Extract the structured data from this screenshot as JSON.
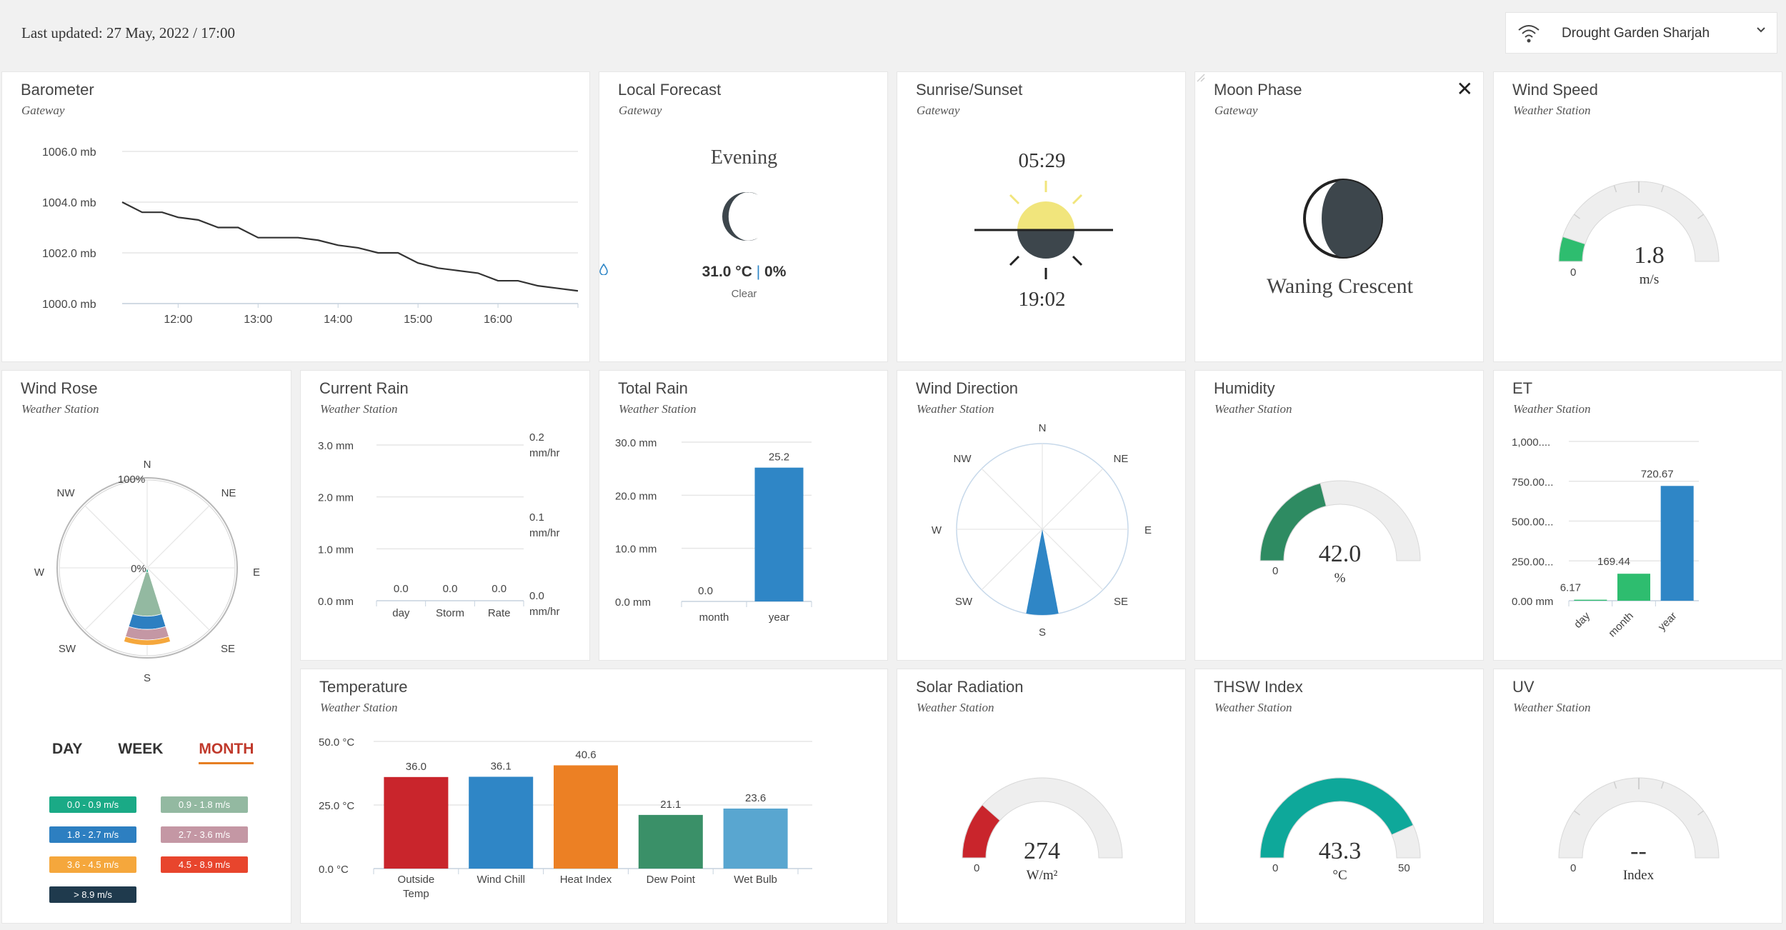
{
  "header": {
    "last_updated": "Last updated: 27 May, 2022 / 17:00",
    "station_name": "Drought Garden Sharjah"
  },
  "barometer": {
    "title": "Barometer",
    "subtitle": "Gateway",
    "chart_data": {
      "type": "line",
      "y_ticks": [
        "1006.0 mb",
        "1004.0 mb",
        "1002.0 mb",
        "1000.0 mb"
      ],
      "x_ticks": [
        "12:00",
        "13:00",
        "14:00",
        "15:00",
        "16:00"
      ],
      "ylim": [
        1000,
        1006
      ],
      "xlim": [
        11.3,
        17.0
      ],
      "points": [
        [
          11.3,
          1004.0
        ],
        [
          11.55,
          1003.6
        ],
        [
          11.8,
          1003.6
        ],
        [
          12.0,
          1003.4
        ],
        [
          12.25,
          1003.3
        ],
        [
          12.5,
          1003.0
        ],
        [
          12.75,
          1003.0
        ],
        [
          13.0,
          1002.6
        ],
        [
          13.25,
          1002.6
        ],
        [
          13.5,
          1002.6
        ],
        [
          13.75,
          1002.5
        ],
        [
          14.0,
          1002.3
        ],
        [
          14.25,
          1002.2
        ],
        [
          14.5,
          1002.0
        ],
        [
          14.75,
          1002.0
        ],
        [
          15.0,
          1001.6
        ],
        [
          15.25,
          1001.4
        ],
        [
          15.5,
          1001.3
        ],
        [
          15.75,
          1001.2
        ],
        [
          16.0,
          1000.9
        ],
        [
          16.25,
          1000.9
        ],
        [
          16.5,
          1000.7
        ],
        [
          16.75,
          1000.6
        ],
        [
          17.0,
          1000.5
        ]
      ]
    }
  },
  "local_forecast": {
    "title": "Local Forecast",
    "subtitle": "Gateway",
    "period": "Evening",
    "temp": "31.0 °C",
    "separator": "|",
    "precip": "0%",
    "condition": "Clear"
  },
  "sunrise_sunset": {
    "title": "Sunrise/Sunset",
    "subtitle": "Gateway",
    "sunrise": "05:29",
    "sunset": "19:02"
  },
  "moon_phase": {
    "title": "Moon Phase",
    "subtitle": "Gateway",
    "phase": "Waning Crescent",
    "close": "✕"
  },
  "wind_speed": {
    "title": "Wind Speed",
    "subtitle": "Weather Station",
    "value": "1.8",
    "unit": "m/s",
    "min_label": "0",
    "fraction": 0.1,
    "color": "#2ebd6f"
  },
  "wind_rose": {
    "title": "Wind Rose",
    "subtitle": "Weather Station",
    "directions": [
      "N",
      "NE",
      "E",
      "SE",
      "S",
      "SW",
      "W",
      "NW"
    ],
    "outer_label": "100%",
    "center_label": "0%",
    "tabs": [
      "DAY",
      "WEEK",
      "MONTH"
    ],
    "active_tab": "MONTH",
    "legend": [
      {
        "label": "0.0 - 0.9 m/s",
        "color": "#1aaa86"
      },
      {
        "label": "0.9 - 1.8 m/s",
        "color": "#93b9a1"
      },
      {
        "label": "1.8 - 2.7 m/s",
        "color": "#2d7fc1"
      },
      {
        "label": "2.7 - 3.6 m/s",
        "color": "#c497a4"
      },
      {
        "label": "3.6 - 4.5 m/s",
        "color": "#f5a73c"
      },
      {
        "label": "4.5 - 8.9 m/s",
        "color": "#e8452d"
      },
      {
        "label": "> 8.9 m/s",
        "color": "#1f3a4d"
      }
    ],
    "south_petal_percent": [
      {
        "band": "0.0 - 0.9 m/s",
        "cumulative": 5
      },
      {
        "band": "0.9 - 1.8 m/s",
        "cumulative": 55
      },
      {
        "band": "1.8 - 2.7 m/s",
        "cumulative": 70
      },
      {
        "band": "2.7 - 3.6 m/s",
        "cumulative": 82
      },
      {
        "band": "3.6 - 4.5 m/s",
        "cumulative": 88
      }
    ]
  },
  "current_rain": {
    "title": "Current Rain",
    "subtitle": "Weather Station",
    "chart_data": {
      "type": "bar",
      "categories": [
        "day",
        "Storm",
        "Rate"
      ],
      "values": [
        0.0,
        0.0,
        0.0
      ],
      "value_labels": [
        "0.0",
        "0.0",
        "0.0"
      ],
      "y_ticks_left": [
        "3.0 mm",
        "2.0 mm",
        "1.0 mm",
        "0.0 mm"
      ],
      "y_ticks_right": [
        [
          "0.2",
          "mm/hr"
        ],
        [
          "0.1",
          "mm/hr"
        ],
        [
          "0.0",
          "mm/hr"
        ]
      ]
    }
  },
  "total_rain": {
    "title": "Total Rain",
    "subtitle": "Weather Station",
    "chart_data": {
      "type": "bar",
      "categories": [
        "month",
        "year"
      ],
      "values": [
        0.0,
        25.2
      ],
      "value_labels": [
        "0.0",
        "25.2"
      ],
      "y_ticks": [
        "30.0 mm",
        "20.0 mm",
        "10.0 mm",
        "0.0 mm"
      ],
      "ylim": [
        0,
        30
      ],
      "color": "#2f86c6"
    }
  },
  "wind_direction": {
    "title": "Wind Direction",
    "subtitle": "Weather Station",
    "directions": [
      "N",
      "NE",
      "E",
      "SE",
      "S",
      "SW",
      "W",
      "NW"
    ],
    "heading_deg": 180,
    "color": "#2f86c6"
  },
  "humidity": {
    "title": "Humidity",
    "subtitle": "Weather Station",
    "value": "42.0",
    "unit": "%",
    "min_label": "0",
    "fraction": 0.42,
    "color": "#2e8b62"
  },
  "et": {
    "title": "ET",
    "subtitle": "Weather Station",
    "chart_data": {
      "type": "bar",
      "categories": [
        "day",
        "month",
        "year"
      ],
      "values": [
        6.17,
        169.44,
        720.67
      ],
      "value_labels": [
        "6.17",
        "169.44",
        "720.67"
      ],
      "colors": [
        "#2ebd6f",
        "#2ebd6f",
        "#2f86c6"
      ],
      "y_ticks": [
        "1,000....",
        "750.00...",
        "500.00...",
        "250.00...",
        "0.00 mm"
      ],
      "ylim": [
        0,
        1000
      ]
    }
  },
  "temperature": {
    "title": "Temperature",
    "subtitle": "Weather Station",
    "chart_data": {
      "type": "bar",
      "categories": [
        [
          "Outside",
          "Temp"
        ],
        [
          "Wind Chill"
        ],
        [
          "Heat Index"
        ],
        [
          "Dew Point"
        ],
        [
          "Wet Bulb"
        ]
      ],
      "values": [
        36.0,
        36.1,
        40.6,
        21.1,
        23.6
      ],
      "value_labels": [
        "36.0",
        "36.1",
        "40.6",
        "21.1",
        "23.6"
      ],
      "colors": [
        "#c9252c",
        "#2f86c6",
        "#ec8024",
        "#3a9068",
        "#59a6d0"
      ],
      "y_ticks": [
        "50.0 °C",
        "25.0 °C",
        "0.0 °C"
      ],
      "ylim": [
        0,
        50
      ]
    }
  },
  "solar_radiation": {
    "title": "Solar Radiation",
    "subtitle": "Weather Station",
    "value": "274",
    "unit": "W/m²",
    "min_label": "0",
    "fraction": 0.23,
    "color": "#c9252c"
  },
  "thsw": {
    "title": "THSW Index",
    "subtitle": "Weather Station",
    "value": "43.3",
    "unit": "°C",
    "min_label": "0",
    "max_label": "50",
    "fraction": 0.866,
    "color": "#0ea89a"
  },
  "uv": {
    "title": "UV",
    "subtitle": "Weather Station",
    "value": "--",
    "unit": "Index",
    "min_label": "0",
    "fraction": 0,
    "color": "#aaaaaa"
  }
}
